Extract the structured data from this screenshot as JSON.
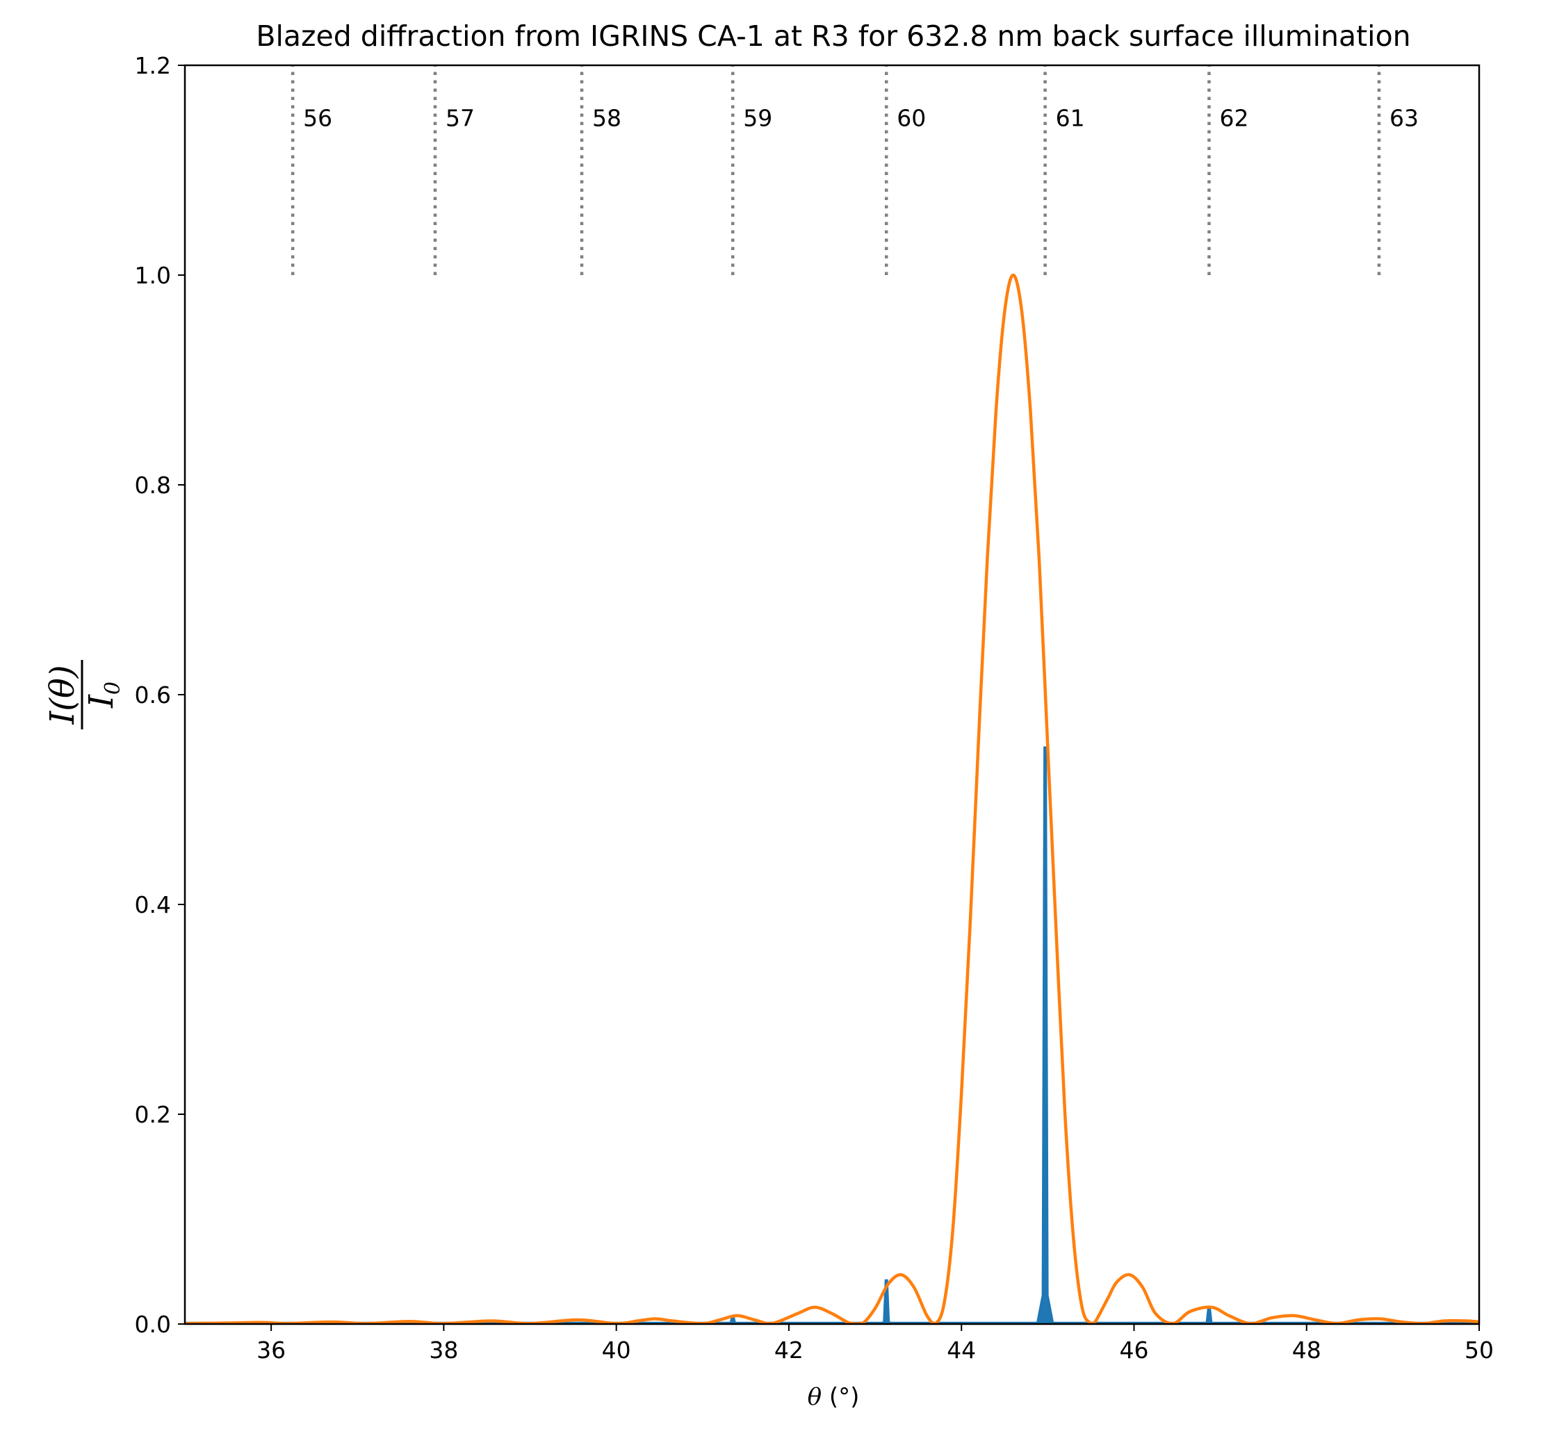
{
  "chart_data": {
    "type": "line",
    "title": "Blazed diffraction from IGRINS CA-1 at R3 for 632.8 nm back surface illumination",
    "xlabel": "θ (°)",
    "ylabel": "I(θ) / I0",
    "xlabel_parts": {
      "symbol": "θ",
      "unit": " (°)"
    },
    "ylabel_parts": {
      "numerator": "I(θ)",
      "denominator_letter": "I",
      "denominator_sub": "0"
    },
    "xlim": [
      35,
      50
    ],
    "ylim": [
      0,
      1.2
    ],
    "xticks": [
      36,
      38,
      40,
      42,
      44,
      46,
      48,
      50
    ],
    "xtick_labels": [
      "36",
      "38",
      "40",
      "42",
      "44",
      "46",
      "48",
      "50"
    ],
    "yticks": [
      0.0,
      0.2,
      0.4,
      0.6,
      0.8,
      1.0,
      1.2
    ],
    "ytick_labels": [
      "0.0",
      "0.2",
      "0.4",
      "0.6",
      "0.8",
      "1.0",
      "1.2"
    ],
    "grid": false,
    "colors": {
      "orders_spectrum": "#1f77b4",
      "blaze_envelope": "#ff7f0e",
      "order_marker": "#808080"
    },
    "order_markers": {
      "y_range": [
        1.0,
        1.2
      ],
      "items": [
        {
          "x": 36.25,
          "label": "56"
        },
        {
          "x": 37.9,
          "label": "57"
        },
        {
          "x": 39.6,
          "label": "58"
        },
        {
          "x": 41.35,
          "label": "59"
        },
        {
          "x": 43.13,
          "label": "60"
        },
        {
          "x": 44.97,
          "label": "61"
        },
        {
          "x": 46.87,
          "label": "62"
        },
        {
          "x": 48.84,
          "label": "63"
        }
      ]
    },
    "series": [
      {
        "kind": "spectrum",
        "color": "#1f77b4",
        "peaks": [
          {
            "x": 41.35,
            "y": 0.007
          },
          {
            "x": 43.13,
            "y": 0.042
          },
          {
            "x": 44.97,
            "y": 0.55
          },
          {
            "x": 46.87,
            "y": 0.016
          }
        ]
      },
      {
        "kind": "envelope",
        "color": "#ff7f0e",
        "x": [
          35.0,
          35.5,
          35.9,
          36.2,
          36.7,
          37.1,
          37.6,
          38.0,
          38.55,
          39.0,
          39.55,
          40.0,
          40.25,
          40.45,
          40.65,
          41.0,
          41.2,
          41.4,
          41.6,
          41.8,
          42.1,
          42.3,
          42.5,
          42.7,
          42.85,
          43.0,
          43.15,
          43.3,
          43.45,
          43.6,
          43.7,
          43.8,
          43.9,
          44.0,
          44.1,
          44.2,
          44.3,
          44.4,
          44.5,
          44.6,
          44.7,
          44.8,
          44.9,
          45.0,
          45.1,
          45.2,
          45.3,
          45.4,
          45.5,
          45.55,
          45.7,
          45.8,
          45.95,
          46.1,
          46.25,
          46.45,
          46.65,
          46.9,
          47.1,
          47.35,
          47.6,
          47.85,
          48.1,
          48.35,
          48.6,
          48.85,
          49.1,
          49.35,
          49.6,
          49.85,
          50.0
        ],
        "y": [
          0.0005,
          0.001,
          0.0015,
          0.0005,
          0.002,
          0.0005,
          0.0025,
          0.0005,
          0.003,
          0.0005,
          0.004,
          0.0005,
          0.003,
          0.005,
          0.003,
          0.0005,
          0.004,
          0.008,
          0.004,
          0.0005,
          0.01,
          0.016,
          0.01,
          0.001,
          0.0005,
          0.015,
          0.038,
          0.047,
          0.035,
          0.008,
          0.0005,
          0.02,
          0.09,
          0.22,
          0.38,
          0.56,
          0.73,
          0.87,
          0.965,
          1.0,
          0.965,
          0.87,
          0.73,
          0.55,
          0.37,
          0.2,
          0.08,
          0.015,
          0.0005,
          0.002,
          0.025,
          0.04,
          0.047,
          0.035,
          0.01,
          0.0005,
          0.012,
          0.016,
          0.008,
          0.0005,
          0.006,
          0.008,
          0.004,
          0.0005,
          0.004,
          0.005,
          0.002,
          0.0005,
          0.003,
          0.003,
          0.002
        ]
      }
    ]
  }
}
